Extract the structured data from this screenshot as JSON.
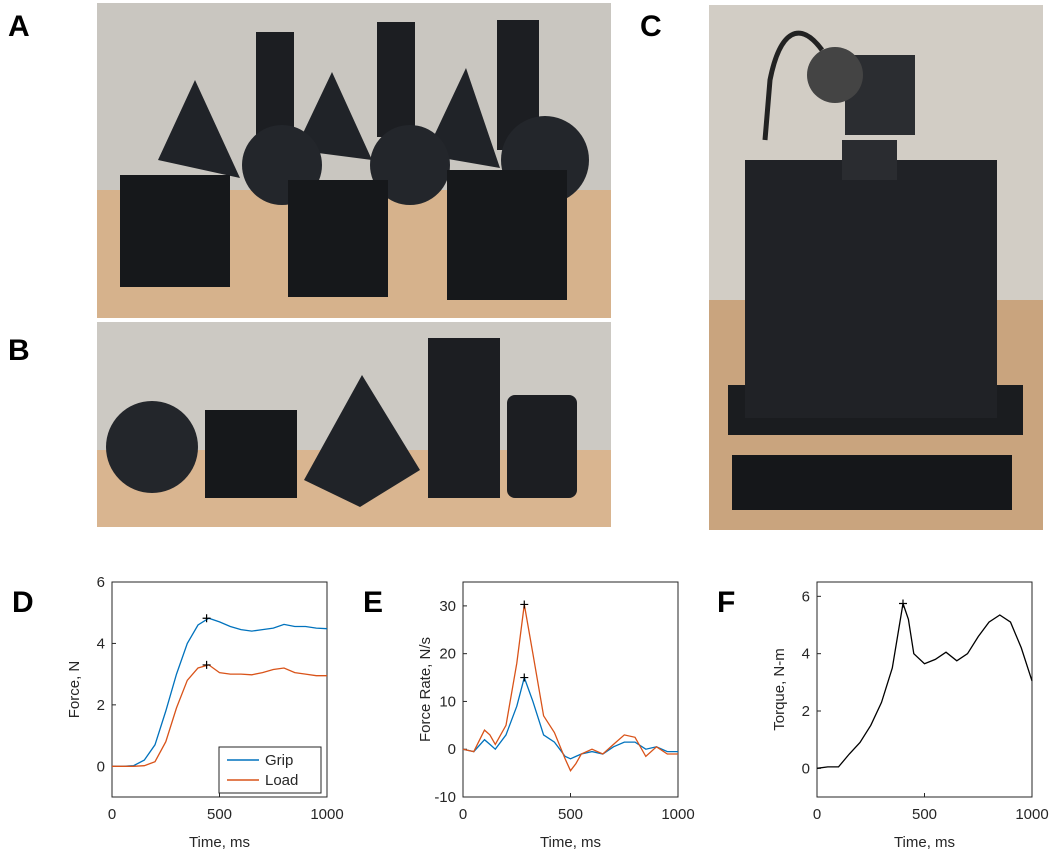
{
  "panel_labels": [
    "A",
    "B",
    "C"
  ],
  "chart_data": [
    {
      "type": "line",
      "panel": "D",
      "xlabel": "Time, ms",
      "ylabel": "Force, N",
      "xlim": [
        0,
        1000
      ],
      "ylim": [
        -1,
        6
      ],
      "xticks": [
        0,
        500,
        1000
      ],
      "yticks": [
        0,
        2,
        4,
        6
      ],
      "legend": "lower right",
      "x": [
        0,
        50,
        100,
        150,
        200,
        250,
        300,
        350,
        400,
        450,
        500,
        550,
        600,
        650,
        700,
        750,
        800,
        850,
        900,
        950,
        1000
      ],
      "series": [
        {
          "name": "Grip",
          "color": "#0072BD",
          "values": [
            0,
            0,
            0.02,
            0.2,
            0.7,
            1.8,
            3.0,
            4.0,
            4.6,
            4.82,
            4.7,
            4.55,
            4.45,
            4.4,
            4.45,
            4.5,
            4.62,
            4.55,
            4.55,
            4.5,
            4.48
          ]
        },
        {
          "name": "Load",
          "color": "#D95319",
          "values": [
            0,
            0,
            0,
            0.02,
            0.15,
            0.8,
            1.9,
            2.8,
            3.2,
            3.3,
            3.05,
            3.0,
            3.0,
            2.98,
            3.05,
            3.15,
            3.2,
            3.05,
            3.0,
            2.95,
            2.95
          ]
        }
      ],
      "peaks": [
        {
          "x": 440,
          "y": 4.82
        },
        {
          "x": 440,
          "y": 3.3
        }
      ]
    },
    {
      "type": "line",
      "panel": "E",
      "xlabel": "Time, ms",
      "ylabel": "Force Rate, N/s",
      "xlim": [
        0,
        1000
      ],
      "ylim": [
        -10,
        35
      ],
      "xticks": [
        0,
        500,
        1000
      ],
      "yticks": [
        -10,
        0,
        10,
        20,
        30
      ],
      "x": [
        0,
        50,
        100,
        125,
        150,
        200,
        250,
        285,
        325,
        375,
        425,
        475,
        500,
        525,
        550,
        600,
        650,
        700,
        750,
        800,
        850,
        900,
        950,
        1000
      ],
      "series": [
        {
          "name": "Grip",
          "color": "#0072BD",
          "values": [
            0,
            -0.5,
            2,
            1,
            0,
            3,
            9,
            15,
            10,
            3,
            1.5,
            -1.5,
            -2,
            -1.5,
            -1,
            -0.5,
            -1,
            0.5,
            1.5,
            1.5,
            0,
            0.5,
            -0.5,
            -0.5
          ]
        },
        {
          "name": "Load",
          "color": "#D95319",
          "values": [
            0,
            -0.5,
            4,
            3,
            1,
            5,
            18,
            30.3,
            20,
            7,
            3.5,
            -2,
            -4.5,
            -3,
            -1,
            0,
            -1,
            1,
            3,
            2.5,
            -1.5,
            0.5,
            -1,
            -1
          ]
        }
      ],
      "peaks": [
        {
          "x": 285,
          "y": 15
        },
        {
          "x": 285,
          "y": 30.3
        }
      ]
    },
    {
      "type": "line",
      "panel": "F",
      "xlabel": "Time, ms",
      "ylabel": "Torque, N-m",
      "xlim": [
        0,
        1000
      ],
      "ylim": [
        -1,
        6.5
      ],
      "xticks": [
        0,
        500,
        1000
      ],
      "yticks": [
        0,
        2,
        4,
        6
      ],
      "x": [
        0,
        50,
        100,
        150,
        200,
        250,
        300,
        350,
        400,
        425,
        450,
        500,
        550,
        600,
        650,
        700,
        750,
        800,
        850,
        900,
        950,
        1000
      ],
      "series": [
        {
          "color": "#000000",
          "values": [
            0,
            0.05,
            0.05,
            0.5,
            0.9,
            1.5,
            2.3,
            3.5,
            5.75,
            5.2,
            4.0,
            3.65,
            3.8,
            4.05,
            3.75,
            4.0,
            4.6,
            5.1,
            5.35,
            5.1,
            4.2,
            3.05
          ]
        }
      ],
      "peaks": [
        {
          "x": 400,
          "y": 5.75
        }
      ]
    }
  ]
}
